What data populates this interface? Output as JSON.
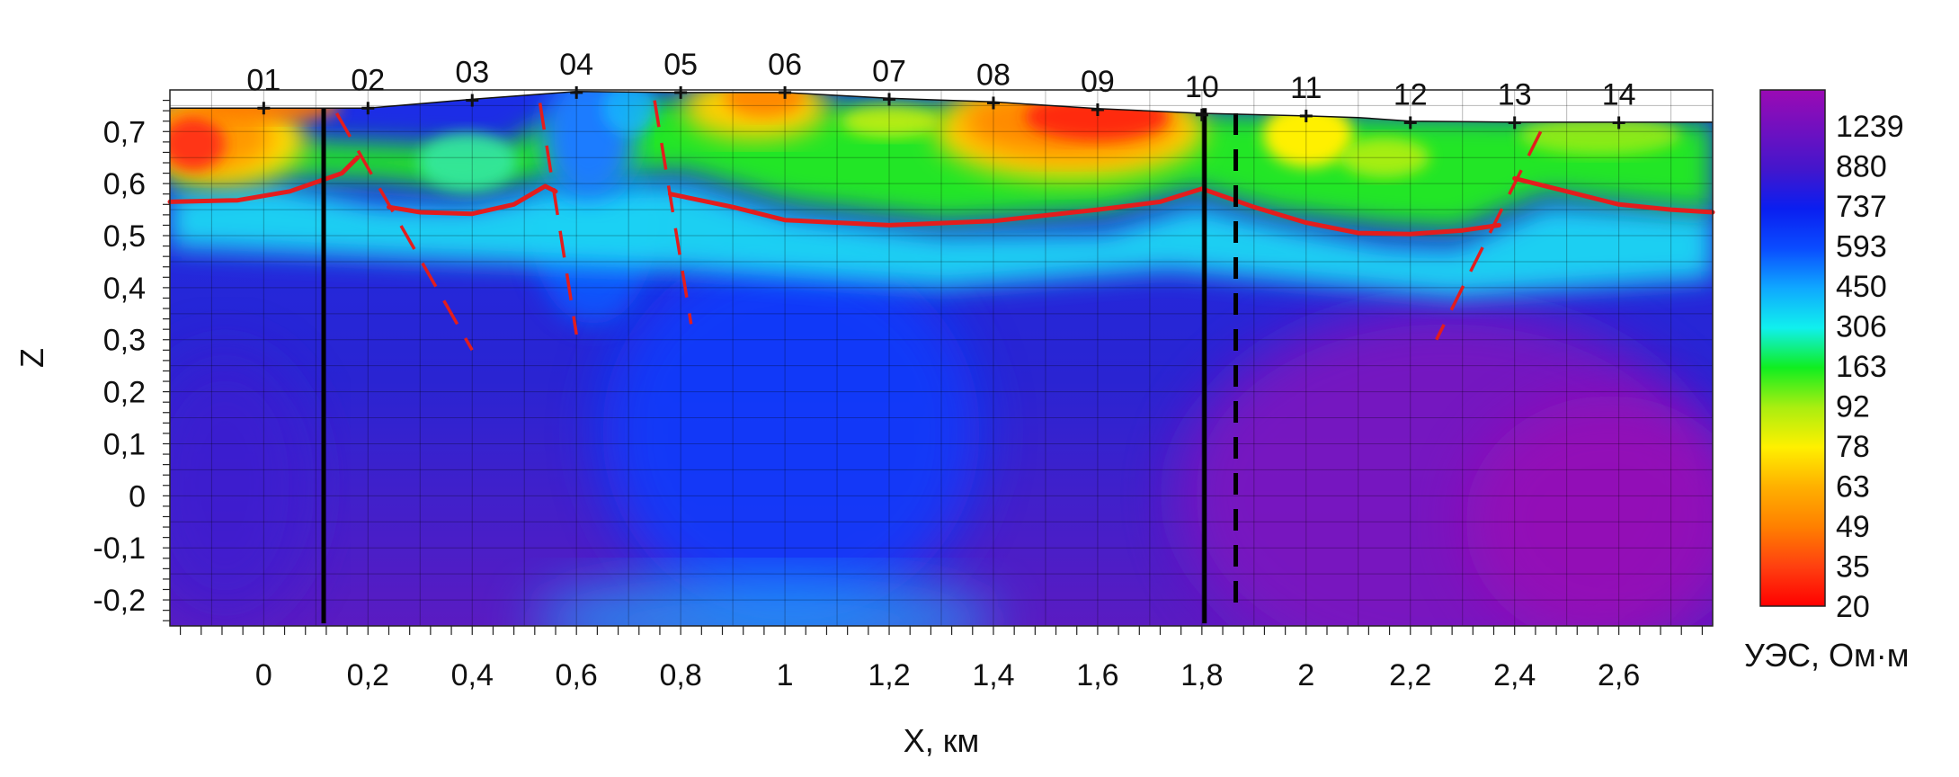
{
  "chart_data": {
    "type": "heatmap",
    "title": "",
    "xlabel": "X, км",
    "ylabel": "Z",
    "xlim": [
      -0.18,
      2.78
    ],
    "ylim": [
      -0.25,
      0.78
    ],
    "x_ticks": [
      0,
      0.2,
      0.4,
      0.6,
      0.8,
      1,
      1.2,
      1.4,
      1.6,
      1.8,
      2,
      2.2,
      2.4,
      2.6
    ],
    "x_tick_labels": [
      "0",
      "0,2",
      "0,4",
      "0,6",
      "0,8",
      "1",
      "1,2",
      "1,4",
      "1,6",
      "1,8",
      "2",
      "2,2",
      "2,4",
      "2,6"
    ],
    "y_ticks": [
      0.7,
      0.6,
      0.5,
      0.4,
      0.3,
      0.2,
      0.1,
      0,
      -0.1,
      -0.2
    ],
    "y_tick_labels": [
      "0,7",
      "0,6",
      "0,5",
      "0,4",
      "0,3",
      "0,2",
      "0,1",
      "0",
      "-0,1",
      "-0,2"
    ],
    "grid": true,
    "stations": [
      {
        "label": "01",
        "x": 0.0,
        "z": 0.745
      },
      {
        "label": "02",
        "x": 0.2,
        "z": 0.745
      },
      {
        "label": "03",
        "x": 0.4,
        "z": 0.76
      },
      {
        "label": "04",
        "x": 0.6,
        "z": 0.775
      },
      {
        "label": "05",
        "x": 0.8,
        "z": 0.775
      },
      {
        "label": "06",
        "x": 1.0,
        "z": 0.775
      },
      {
        "label": "07",
        "x": 1.2,
        "z": 0.762
      },
      {
        "label": "08",
        "x": 1.4,
        "z": 0.755
      },
      {
        "label": "09",
        "x": 1.6,
        "z": 0.742
      },
      {
        "label": "10",
        "x": 1.8,
        "z": 0.732
      },
      {
        "label": "11",
        "x": 2.0,
        "z": 0.73
      },
      {
        "label": "12",
        "x": 2.2,
        "z": 0.717
      },
      {
        "label": "13",
        "x": 2.4,
        "z": 0.717
      },
      {
        "label": "14",
        "x": 2.6,
        "z": 0.717
      }
    ],
    "topography": [
      [
        -0.18,
        0.745
      ],
      [
        0.2,
        0.745
      ],
      [
        0.4,
        0.762
      ],
      [
        0.6,
        0.777
      ],
      [
        0.8,
        0.775
      ],
      [
        1.0,
        0.775
      ],
      [
        1.2,
        0.764
      ],
      [
        1.4,
        0.757
      ],
      [
        1.6,
        0.744
      ],
      [
        1.8,
        0.735
      ],
      [
        2.0,
        0.73
      ],
      [
        2.1,
        0.727
      ],
      [
        2.2,
        0.72
      ],
      [
        2.4,
        0.718
      ],
      [
        2.78,
        0.718
      ]
    ],
    "boundary_lines": [
      [
        [
          -0.18,
          0.565
        ],
        [
          -0.05,
          0.568
        ],
        [
          0.05,
          0.585
        ],
        [
          0.15,
          0.62
        ],
        [
          0.18,
          0.65
        ]
      ],
      [
        [
          0.24,
          0.555
        ],
        [
          0.3,
          0.545
        ],
        [
          0.4,
          0.542
        ],
        [
          0.48,
          0.56
        ],
        [
          0.54,
          0.595
        ],
        [
          0.56,
          0.585
        ]
      ],
      [
        [
          0.78,
          0.58
        ],
        [
          0.9,
          0.555
        ],
        [
          1.0,
          0.53
        ],
        [
          1.2,
          0.52
        ],
        [
          1.4,
          0.528
        ],
        [
          1.6,
          0.55
        ],
        [
          1.72,
          0.565
        ],
        [
          1.8,
          0.59
        ],
        [
          1.9,
          0.555
        ],
        [
          2.0,
          0.525
        ],
        [
          2.1,
          0.505
        ],
        [
          2.2,
          0.503
        ],
        [
          2.3,
          0.51
        ],
        [
          2.37,
          0.52
        ]
      ],
      [
        [
          2.4,
          0.61
        ],
        [
          2.5,
          0.585
        ],
        [
          2.6,
          0.56
        ],
        [
          2.7,
          0.55
        ],
        [
          2.78,
          0.545
        ]
      ]
    ],
    "dashed_faults": [
      [
        [
          0.14,
          0.735
        ],
        [
          0.4,
          0.28
        ]
      ],
      [
        [
          0.53,
          0.755
        ],
        [
          0.6,
          0.31
        ]
      ],
      [
        [
          0.75,
          0.76
        ],
        [
          0.82,
          0.33
        ]
      ],
      [
        [
          2.45,
          0.7
        ],
        [
          2.25,
          0.3
        ]
      ]
    ],
    "vertical_solid_lines": [
      0.115,
      1.805
    ],
    "vertical_dashed_lines": [
      1.865
    ],
    "colorbar": {
      "title": "УЭС, Ом·м",
      "labels": [
        "1239",
        "880",
        "737",
        "593",
        "450",
        "306",
        "163",
        "92",
        "78",
        "63",
        "49",
        "35",
        "20"
      ],
      "colors": [
        "#9b0ab4",
        "#4416cc",
        "#0a1ef0",
        "#0a4cff",
        "#0fa8ff",
        "#10f0ee",
        "#10ee20",
        "#aaee10",
        "#fff000",
        "#ffb000",
        "#ff8000",
        "#ff4010",
        "#ff0000"
      ]
    },
    "colors": {
      "line": "#e31d1d",
      "fault_dashed": "#e31d1d",
      "vertical": "#000000"
    }
  }
}
